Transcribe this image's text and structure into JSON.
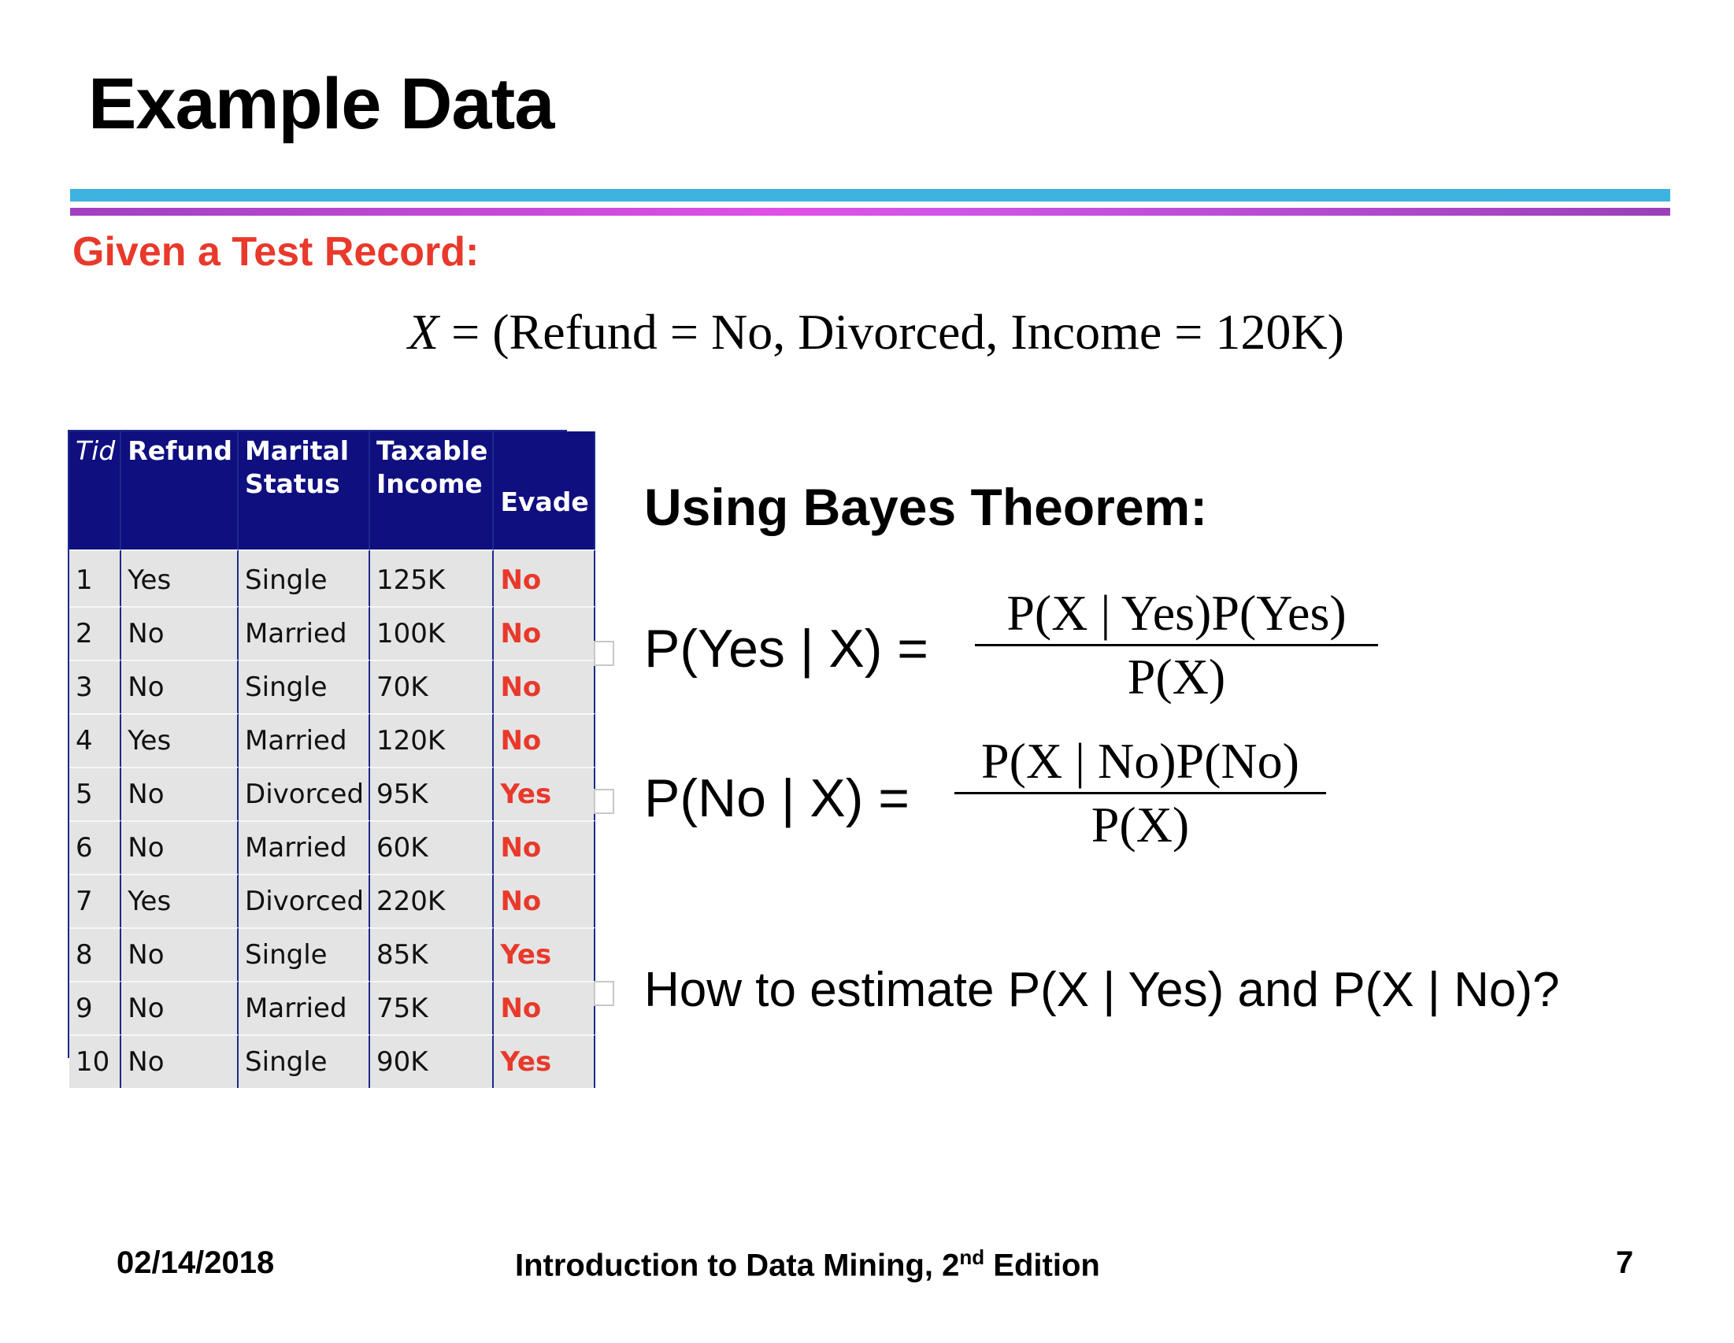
{
  "slide": {
    "title": "Example Data",
    "subtitle": "Given a Test Record:",
    "test_record": {
      "var": "X",
      "eq": "=",
      "expr": "(Refund = No, Divorced, Income = 120K)"
    }
  },
  "table": {
    "headers": [
      "Tid",
      "Refund",
      "Marital Status",
      "Taxable Income",
      "Evade"
    ],
    "header_lines": {
      "tid": "Tid",
      "refund": "Refund",
      "marital_1": "Marital",
      "marital_2": "Status",
      "taxable_1": "Taxable",
      "taxable_2": "Income",
      "evade": "Evade"
    },
    "rows": [
      [
        "1",
        "Yes",
        "Single",
        "125K",
        "No"
      ],
      [
        "2",
        "No",
        "Married",
        "100K",
        "No"
      ],
      [
        "3",
        "No",
        "Single",
        "70K",
        "No"
      ],
      [
        "4",
        "Yes",
        "Married",
        "120K",
        "No"
      ],
      [
        "5",
        "No",
        "Divorced",
        "95K",
        "Yes"
      ],
      [
        "6",
        "No",
        "Married",
        "60K",
        "No"
      ],
      [
        "7",
        "Yes",
        "Divorced",
        "220K",
        "No"
      ],
      [
        "8",
        "No",
        "Single",
        "85K",
        "Yes"
      ],
      [
        "9",
        "No",
        "Married",
        "75K",
        "No"
      ],
      [
        "10",
        "No",
        "Single",
        "90K",
        "Yes"
      ]
    ]
  },
  "bayes": {
    "heading": "Using Bayes Theorem:",
    "eq_yes": {
      "lhs": "P(Yes | X) =",
      "numerator": "P(X | Yes)P(Yes)",
      "denominator": "P(X)"
    },
    "eq_no": {
      "lhs": "P(No | X) =",
      "numerator": "P(X | No)P(No)",
      "denominator": "P(X)"
    },
    "question": "How to estimate P(X | Yes) and P(X | No)?"
  },
  "footer": {
    "date": "02/14/2018",
    "book_pre": "Introduction to Data Mining, 2",
    "book_sup": "nd",
    "book_post": " Edition",
    "page": "7"
  },
  "colors": {
    "accent_red": "#e8392b",
    "header_navy": "#0f0f80",
    "rule_blue": "#3fb3e0",
    "rule_purple": "#d050e8"
  }
}
